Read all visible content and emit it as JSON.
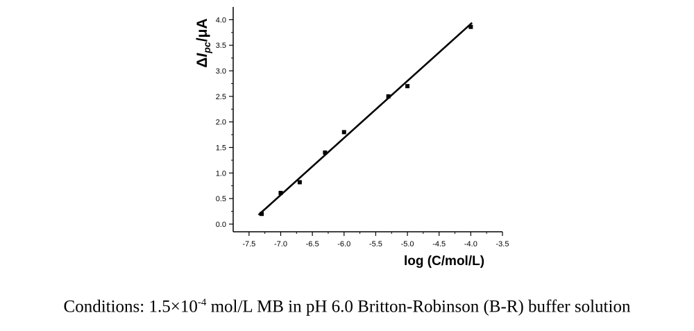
{
  "chart_data": {
    "type": "scatter",
    "xlabel": "log (C/mol/L)",
    "ylabel": {
      "delta": "Δ",
      "symbol": "I",
      "subscript": "pc",
      "unit": "/μA"
    },
    "xlim": [
      -7.75,
      -3.5
    ],
    "ylim": [
      -0.15,
      4.25
    ],
    "x_ticks": [
      "-7.5",
      "-7.0",
      "-6.5",
      "-6.0",
      "-5.5",
      "-5.0",
      "-4.5",
      "-4.0",
      "-3.5"
    ],
    "y_ticks": [
      "0.0",
      "0.5",
      "1.0",
      "1.5",
      "2.0",
      "2.5",
      "3.0",
      "3.5",
      "4.0"
    ],
    "series": [
      {
        "x": [
          -7.3,
          -7.0,
          -6.7,
          -6.3,
          -6.0,
          -5.3,
          -5.0,
          -4.0
        ],
        "y": [
          0.2,
          0.61,
          0.82,
          1.4,
          1.8,
          2.5,
          2.7,
          3.86
        ]
      }
    ],
    "fit_line": {
      "x": [
        -7.35,
        -3.98
      ],
      "y": [
        0.18,
        3.94
      ]
    },
    "grid": false,
    "legend": "none"
  },
  "caption": {
    "prefix": "Conditions: 1.5×10",
    "exponent": "-4",
    "suffix": " mol/L MB in pH 6.0 Britton-Robinson (B-R) buffer solution"
  }
}
